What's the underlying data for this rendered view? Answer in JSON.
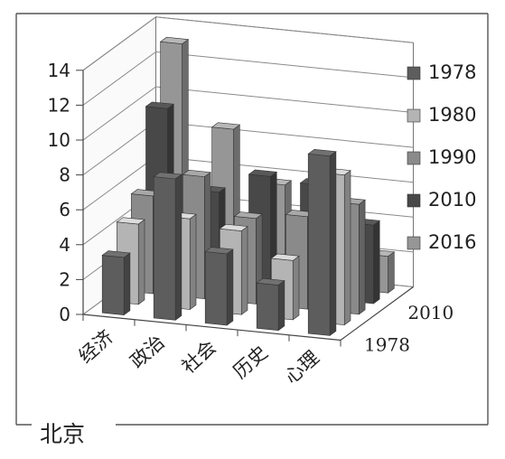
{
  "chart_data": {
    "type": "bar",
    "title": "",
    "caption": "北京",
    "categories": [
      "经济",
      "政治",
      "社会",
      "历史",
      "心理"
    ],
    "ylim": [
      0,
      14
    ],
    "yticks": [
      "0",
      "2",
      "4",
      "6",
      "8",
      "10",
      "12",
      "14"
    ],
    "grid": true,
    "legend_position": "right",
    "depth_axis_labels": [
      "1978",
      "2010"
    ],
    "series": [
      {
        "name": "1978",
        "color": "#5d5d5d",
        "values": [
          3.3,
          8.1,
          4.1,
          2.6,
          10.3
        ]
      },
      {
        "name": "1980",
        "color": "#b4b4b4",
        "values": [
          4.6,
          5.2,
          4.8,
          3.4,
          8.6
        ]
      },
      {
        "name": "1990",
        "color": "#8a8a8a",
        "values": [
          5.6,
          7.0,
          4.9,
          5.3,
          6.3
        ]
      },
      {
        "name": "2010",
        "color": "#484848",
        "values": [
          10.0,
          5.5,
          6.7,
          6.5,
          4.5
        ]
      },
      {
        "name": "2016",
        "color": "#969696",
        "values": [
          13.1,
          8.5,
          5.6,
          4.9,
          2.1
        ]
      }
    ]
  }
}
